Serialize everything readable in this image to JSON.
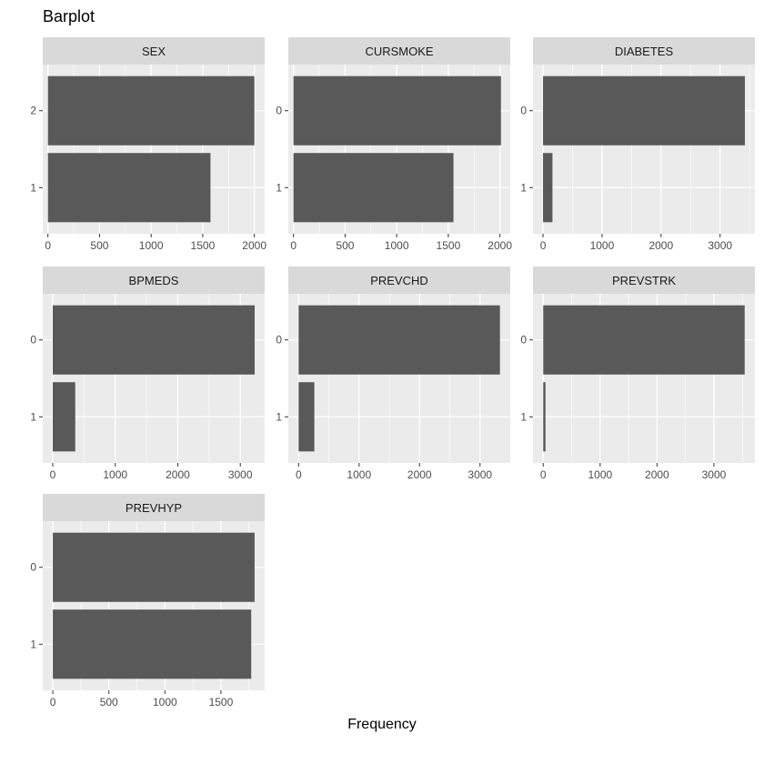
{
  "chart_data": {
    "type": "bar",
    "orientation": "horizontal",
    "title": "Barplot",
    "xlabel": "Frequency",
    "ylabel": "",
    "bar_color": "#595959",
    "panel_bg": "#ebebeb",
    "strip_bg": "#d9d9d9",
    "grid_color": "#ffffff",
    "panels": [
      {
        "name": "SEX",
        "categories": [
          "1",
          "2"
        ],
        "values": [
          1575,
          2000
        ],
        "xlim": [
          -50,
          2100
        ],
        "ticks": [
          0,
          500,
          1000,
          1500,
          2000
        ]
      },
      {
        "name": "CURSMOKE",
        "categories": [
          "1",
          "0"
        ],
        "values": [
          1550,
          2010
        ],
        "xlim": [
          -50,
          2100
        ],
        "ticks": [
          0,
          500,
          1000,
          1500,
          2000
        ]
      },
      {
        "name": "DIABETES",
        "categories": [
          "1",
          "0"
        ],
        "values": [
          160,
          3420
        ],
        "xlim": [
          -170,
          3590
        ],
        "ticks": [
          0,
          1000,
          2000,
          3000
        ]
      },
      {
        "name": "BPMEDS",
        "categories": [
          "1",
          "0"
        ],
        "values": [
          360,
          3230
        ],
        "xlim": [
          -160,
          3390
        ],
        "ticks": [
          0,
          1000,
          2000,
          3000
        ]
      },
      {
        "name": "PREVCHD",
        "categories": [
          "1",
          "0"
        ],
        "values": [
          260,
          3330
        ],
        "xlim": [
          -170,
          3500
        ],
        "ticks": [
          0,
          1000,
          2000,
          3000
        ]
      },
      {
        "name": "PREVSTRK",
        "categories": [
          "1",
          "0"
        ],
        "values": [
          40,
          3540
        ],
        "xlim": [
          -180,
          3720
        ],
        "ticks": [
          0,
          1000,
          2000,
          3000
        ]
      },
      {
        "name": "PREVHYP",
        "categories": [
          "1",
          "0"
        ],
        "values": [
          1770,
          1800
        ],
        "xlim": [
          -90,
          1890
        ],
        "ticks": [
          0,
          500,
          1000,
          1500
        ]
      }
    ]
  }
}
